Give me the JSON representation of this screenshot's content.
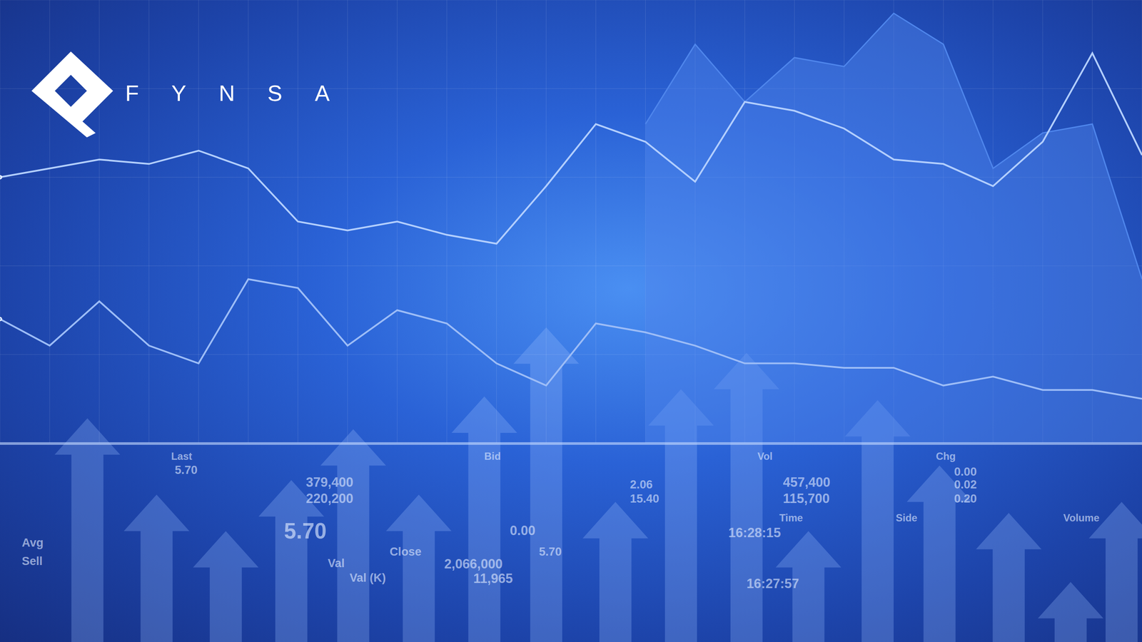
{
  "logo": {
    "text": "FYNSA"
  },
  "ticker": [
    "Last",
    "5.70",
    "379,400",
    "220,200",
    "Bid",
    "Vol",
    "457,400",
    "115,700",
    "Chg",
    "0.00",
    "0.02",
    "0.20",
    "Avg",
    "Sell",
    "5.70",
    "Close",
    "Val",
    "Val (K)",
    "2,066,000",
    "11,965",
    "0.00",
    "5.70",
    "2.06",
    "15.40",
    "Time",
    "16:28:15",
    "16:27:57",
    "Side",
    "Volume"
  ],
  "chart_data": {
    "type": "line",
    "tick_labels": false,
    "grid": true,
    "categories": [
      null,
      null,
      null,
      null,
      null,
      null,
      null,
      null,
      null,
      null,
      null,
      null,
      null,
      null,
      null,
      null,
      null,
      null,
      null,
      null,
      null,
      null,
      null,
      null
    ],
    "ylim": [
      0,
      100
    ],
    "yticks": [
      0,
      20,
      40,
      60,
      80,
      100
    ],
    "series": [
      {
        "type": "area",
        "color": "#4f86ec",
        "values": [
          null,
          null,
          null,
          null,
          null,
          null,
          null,
          null,
          null,
          null,
          null,
          null,
          null,
          72,
          90,
          77,
          87,
          85,
          97,
          90,
          62,
          70,
          72,
          37
        ]
      },
      {
        "type": "line",
        "color": "#b3cfff",
        "values": [
          60,
          62,
          64,
          63,
          66,
          62,
          50,
          48,
          50,
          47,
          45,
          58,
          72,
          68,
          59,
          77,
          75,
          71,
          64,
          63,
          58,
          68,
          88,
          65
        ]
      },
      {
        "type": "line",
        "color": "#9dbdf7",
        "values": [
          28,
          22,
          32,
          22,
          18,
          37,
          35,
          22,
          30,
          27,
          18,
          13,
          27,
          25,
          22,
          18,
          18,
          17,
          17,
          13,
          15,
          12,
          12,
          10
        ]
      }
    ]
  }
}
